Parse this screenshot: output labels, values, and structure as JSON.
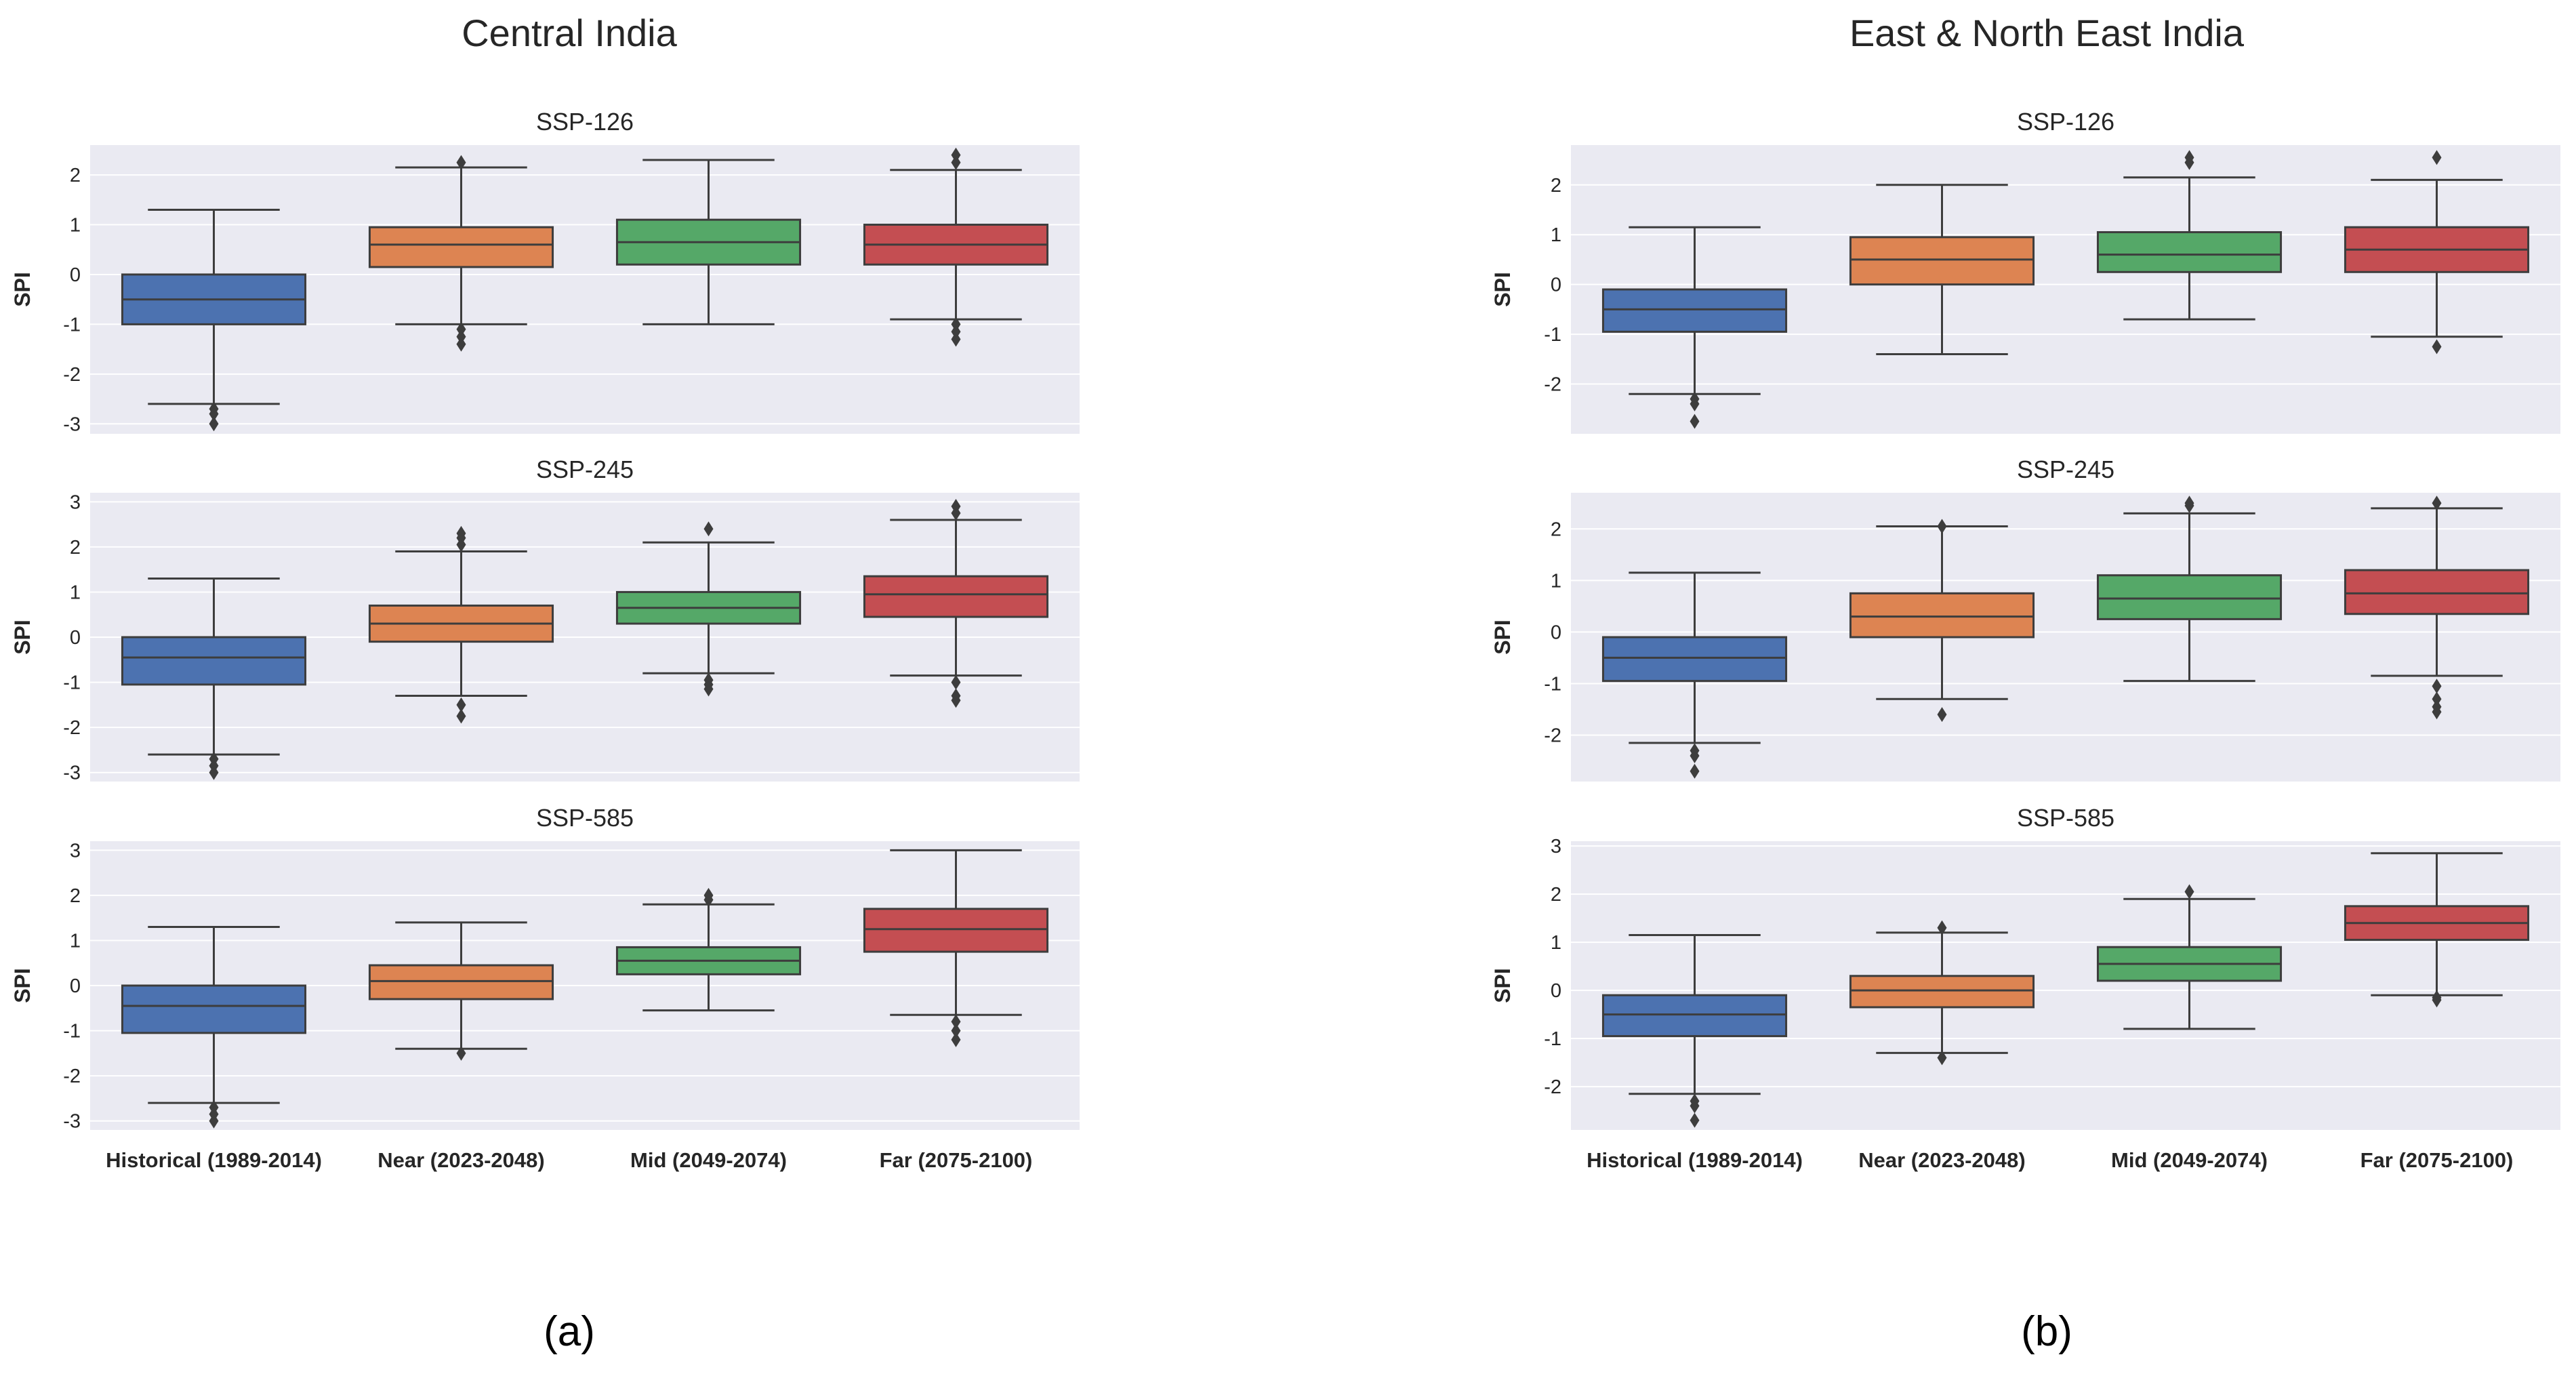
{
  "colors": {
    "background": "#eaeaf2",
    "grid": "#ffffff",
    "edge": "#3d3d3d"
  },
  "chart_data": [
    {
      "type": "boxplot",
      "panel_title": "Central India",
      "caption": "(a)",
      "categories": [
        "Historical (1989-2014)",
        "Near (2023-2048)",
        "Mid (2049-2074)",
        "Far (2075-2100)"
      ],
      "box_colors": [
        "#4c72b0",
        "#dd8452",
        "#55a868",
        "#c44e52"
      ],
      "ylabel": "SPI",
      "subplots": [
        {
          "title": "SSP-126",
          "ylim": [
            -3.2,
            2.6
          ],
          "yticks": [
            -3,
            -2,
            -1,
            0,
            1,
            2
          ],
          "boxes": [
            {
              "whislo": -2.6,
              "q1": -1.0,
              "med": -0.5,
              "q3": 0.0,
              "whishi": 1.3,
              "fliers": [
                -2.7,
                -2.8,
                -3.0
              ]
            },
            {
              "whislo": -1.0,
              "q1": 0.15,
              "med": 0.6,
              "q3": 0.95,
              "whishi": 2.15,
              "fliers": [
                -1.1,
                -1.25,
                -1.4,
                2.25
              ]
            },
            {
              "whislo": -1.0,
              "q1": 0.2,
              "med": 0.65,
              "q3": 1.1,
              "whishi": 2.3,
              "fliers": []
            },
            {
              "whislo": -0.9,
              "q1": 0.2,
              "med": 0.6,
              "q3": 1.0,
              "whishi": 2.1,
              "fliers": [
                -1.0,
                -1.15,
                -1.3,
                2.25,
                2.4
              ]
            }
          ]
        },
        {
          "title": "SSP-245",
          "ylim": [
            -3.2,
            3.2
          ],
          "yticks": [
            -3,
            -2,
            -1,
            0,
            1,
            2,
            3
          ],
          "boxes": [
            {
              "whislo": -2.6,
              "q1": -1.05,
              "med": -0.45,
              "q3": 0.0,
              "whishi": 1.3,
              "fliers": [
                -2.7,
                -2.85,
                -3.0
              ]
            },
            {
              "whislo": -1.3,
              "q1": -0.1,
              "med": 0.3,
              "q3": 0.7,
              "whishi": 1.9,
              "fliers": [
                -1.5,
                -1.75,
                2.05,
                2.2,
                2.3
              ]
            },
            {
              "whislo": -0.8,
              "q1": 0.3,
              "med": 0.65,
              "q3": 1.0,
              "whishi": 2.1,
              "fliers": [
                -0.95,
                -1.05,
                -1.15,
                2.4
              ]
            },
            {
              "whislo": -0.85,
              "q1": 0.45,
              "med": 0.95,
              "q3": 1.35,
              "whishi": 2.6,
              "fliers": [
                -1.0,
                -1.3,
                -1.4,
                2.75,
                2.9
              ]
            }
          ]
        },
        {
          "title": "SSP-585",
          "ylim": [
            -3.2,
            3.2
          ],
          "yticks": [
            -3,
            -2,
            -1,
            0,
            1,
            2,
            3
          ],
          "boxes": [
            {
              "whislo": -2.6,
              "q1": -1.05,
              "med": -0.45,
              "q3": 0.0,
              "whishi": 1.3,
              "fliers": [
                -2.7,
                -2.85,
                -3.0
              ]
            },
            {
              "whislo": -1.4,
              "q1": -0.3,
              "med": 0.1,
              "q3": 0.45,
              "whishi": 1.4,
              "fliers": [
                -1.5
              ]
            },
            {
              "whislo": -0.55,
              "q1": 0.25,
              "med": 0.55,
              "q3": 0.85,
              "whishi": 1.8,
              "fliers": [
                1.9,
                2.0
              ]
            },
            {
              "whislo": -0.65,
              "q1": 0.75,
              "med": 1.25,
              "q3": 1.7,
              "whishi": 3.0,
              "fliers": [
                -0.8,
                -1.0,
                -1.2
              ]
            }
          ]
        }
      ]
    },
    {
      "type": "boxplot",
      "panel_title": "East & North East India",
      "caption": "(b)",
      "categories": [
        "Historical (1989-2014)",
        "Near (2023-2048)",
        "Mid (2049-2074)",
        "Far (2075-2100)"
      ],
      "box_colors": [
        "#4c72b0",
        "#dd8452",
        "#55a868",
        "#c44e52"
      ],
      "ylabel": "SPI",
      "subplots": [
        {
          "title": "SSP-126",
          "ylim": [
            -3.0,
            2.8
          ],
          "yticks": [
            -2,
            -1,
            0,
            1,
            2
          ],
          "boxes": [
            {
              "whislo": -2.2,
              "q1": -0.95,
              "med": -0.5,
              "q3": -0.1,
              "whishi": 1.15,
              "fliers": [
                -2.3,
                -2.4,
                -2.75
              ]
            },
            {
              "whislo": -1.4,
              "q1": 0.0,
              "med": 0.5,
              "q3": 0.95,
              "whishi": 2.0,
              "fliers": []
            },
            {
              "whislo": -0.7,
              "q1": 0.25,
              "med": 0.6,
              "q3": 1.05,
              "whishi": 2.15,
              "fliers": [
                2.45,
                2.55
              ]
            },
            {
              "whislo": -1.05,
              "q1": 0.25,
              "med": 0.7,
              "q3": 1.15,
              "whishi": 2.1,
              "fliers": [
                -1.25,
                2.55
              ]
            }
          ]
        },
        {
          "title": "SSP-245",
          "ylim": [
            -2.9,
            2.7
          ],
          "yticks": [
            -2,
            -1,
            0,
            1,
            2
          ],
          "boxes": [
            {
              "whislo": -2.15,
              "q1": -0.95,
              "med": -0.5,
              "q3": -0.1,
              "whishi": 1.15,
              "fliers": [
                -2.3,
                -2.4,
                -2.7
              ]
            },
            {
              "whislo": -1.3,
              "q1": -0.1,
              "med": 0.3,
              "q3": 0.75,
              "whishi": 2.05,
              "fliers": [
                -1.6,
                2.05
              ]
            },
            {
              "whislo": -0.95,
              "q1": 0.25,
              "med": 0.65,
              "q3": 1.1,
              "whishi": 2.3,
              "fliers": [
                2.45,
                2.5
              ]
            },
            {
              "whislo": -0.85,
              "q1": 0.35,
              "med": 0.75,
              "q3": 1.2,
              "whishi": 2.4,
              "fliers": [
                -1.05,
                -1.3,
                -1.45,
                -1.55,
                2.5
              ]
            }
          ]
        },
        {
          "title": "SSP-585",
          "ylim": [
            -2.9,
            3.1
          ],
          "yticks": [
            -2,
            -1,
            0,
            1,
            2,
            3
          ],
          "boxes": [
            {
              "whislo": -2.15,
              "q1": -0.95,
              "med": -0.5,
              "q3": -0.1,
              "whishi": 1.15,
              "fliers": [
                -2.3,
                -2.4,
                -2.7
              ]
            },
            {
              "whislo": -1.3,
              "q1": -0.35,
              "med": 0.0,
              "q3": 0.3,
              "whishi": 1.2,
              "fliers": [
                -1.4,
                1.3
              ]
            },
            {
              "whislo": -0.8,
              "q1": 0.2,
              "med": 0.55,
              "q3": 0.9,
              "whishi": 1.9,
              "fliers": [
                2.05
              ]
            },
            {
              "whislo": -0.1,
              "q1": 1.05,
              "med": 1.4,
              "q3": 1.75,
              "whishi": 2.85,
              "fliers": [
                -0.15,
                -0.2
              ]
            }
          ]
        }
      ]
    }
  ]
}
